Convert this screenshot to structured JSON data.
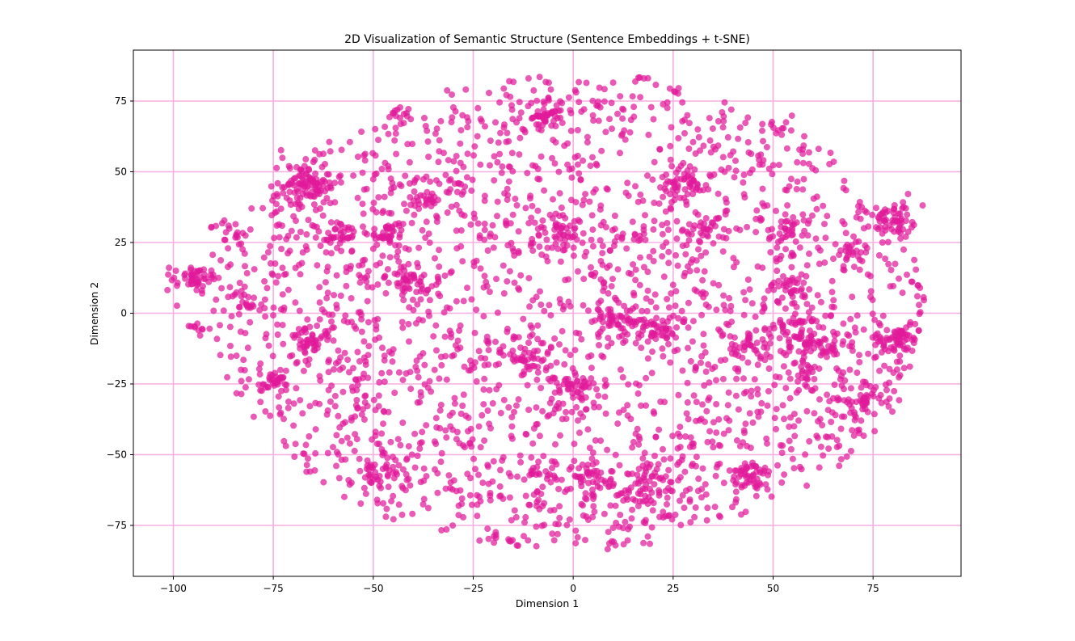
{
  "chart_data": {
    "type": "scatter",
    "title": "2D Visualization of Semantic Structure (Sentence Embeddings + t-SNE)",
    "xlabel": "Dimension 1",
    "ylabel": "Dimension 2",
    "xlim": [
      -110,
      97
    ],
    "ylim": [
      -93,
      93
    ],
    "xticks": [
      -100,
      -75,
      -50,
      -25,
      0,
      25,
      50,
      75
    ],
    "yticks": [
      -75,
      -50,
      -25,
      0,
      25,
      50,
      75
    ],
    "xtick_labels": [
      "−100",
      "−75",
      "−50",
      "−25",
      "0",
      "25",
      "50",
      "75"
    ],
    "ytick_labels": [
      "−75",
      "−50",
      "−25",
      "0",
      "25",
      "50",
      "75"
    ],
    "grid": true,
    "grid_color": "#f7aee0",
    "point_color": "#e0199a",
    "point_opacity": 0.72,
    "clusters": [
      {
        "x": -95,
        "y": 13,
        "spread": 2.5,
        "n": 55
      },
      {
        "x": -67,
        "y": 45,
        "spread": 4,
        "n": 90
      },
      {
        "x": -75,
        "y": -25,
        "spread": 2,
        "n": 25
      },
      {
        "x": -66,
        "y": -10,
        "spread": 3,
        "n": 40
      },
      {
        "x": -58,
        "y": 28,
        "spread": 2.5,
        "n": 30
      },
      {
        "x": -46,
        "y": 28,
        "spread": 3,
        "n": 35
      },
      {
        "x": -6,
        "y": 70,
        "spread": 3,
        "n": 45
      },
      {
        "x": 28,
        "y": 46,
        "spread": 3,
        "n": 45
      },
      {
        "x": 80,
        "y": -9,
        "spread": 3,
        "n": 60
      },
      {
        "x": 80,
        "y": 33,
        "spread": 3.5,
        "n": 55
      },
      {
        "x": 56,
        "y": -6,
        "spread": 3,
        "n": 45
      },
      {
        "x": 61,
        "y": -12,
        "spread": 2.5,
        "n": 30
      },
      {
        "x": 45,
        "y": -58,
        "spread": 3,
        "n": 45
      },
      {
        "x": 18,
        "y": -62,
        "spread": 4,
        "n": 55
      },
      {
        "x": 22,
        "y": -5,
        "spread": 3,
        "n": 40
      },
      {
        "x": 10,
        "y": -3,
        "spread": 3,
        "n": 35
      },
      {
        "x": 0,
        "y": -25,
        "spread": 4,
        "n": 40
      },
      {
        "x": -12,
        "y": -14,
        "spread": 3,
        "n": 35
      },
      {
        "x": -48,
        "y": -55,
        "spread": 3,
        "n": 35
      },
      {
        "x": 55,
        "y": 10,
        "spread": 2.5,
        "n": 30
      },
      {
        "x": 72,
        "y": -31,
        "spread": 2.5,
        "n": 30
      },
      {
        "x": 70,
        "y": 21,
        "spread": 2,
        "n": 20
      },
      {
        "x": 44,
        "y": -12,
        "spread": 2.5,
        "n": 30
      },
      {
        "x": 53,
        "y": 29,
        "spread": 2.5,
        "n": 25
      },
      {
        "x": -40,
        "y": 11,
        "spread": 3,
        "n": 30
      },
      {
        "x": -36,
        "y": 41,
        "spread": 2,
        "n": 20
      },
      {
        "x": -3,
        "y": 28,
        "spread": 3,
        "n": 30
      },
      {
        "x": 5,
        "y": -58,
        "spread": 3,
        "n": 30
      },
      {
        "x": -8,
        "y": -58,
        "spread": 2.5,
        "n": 25
      },
      {
        "x": -82,
        "y": 4,
        "spread": 2,
        "n": 15
      },
      {
        "x": -94,
        "y": -5,
        "spread": 1.5,
        "n": 10
      },
      {
        "x": -86,
        "y": 29,
        "spread": 2,
        "n": 15
      },
      {
        "x": -44,
        "y": 70,
        "spread": 1.5,
        "n": 10
      },
      {
        "x": 17,
        "y": 83,
        "spread": 0.8,
        "n": 4
      },
      {
        "x": 53,
        "y": 65,
        "spread": 2,
        "n": 8
      },
      {
        "x": 26,
        "y": 77,
        "spread": 1,
        "n": 4
      },
      {
        "x": 58,
        "y": -22,
        "spread": 2.5,
        "n": 20
      },
      {
        "x": 33,
        "y": 30,
        "spread": 3,
        "n": 25
      }
    ],
    "background_n": 2300
  }
}
